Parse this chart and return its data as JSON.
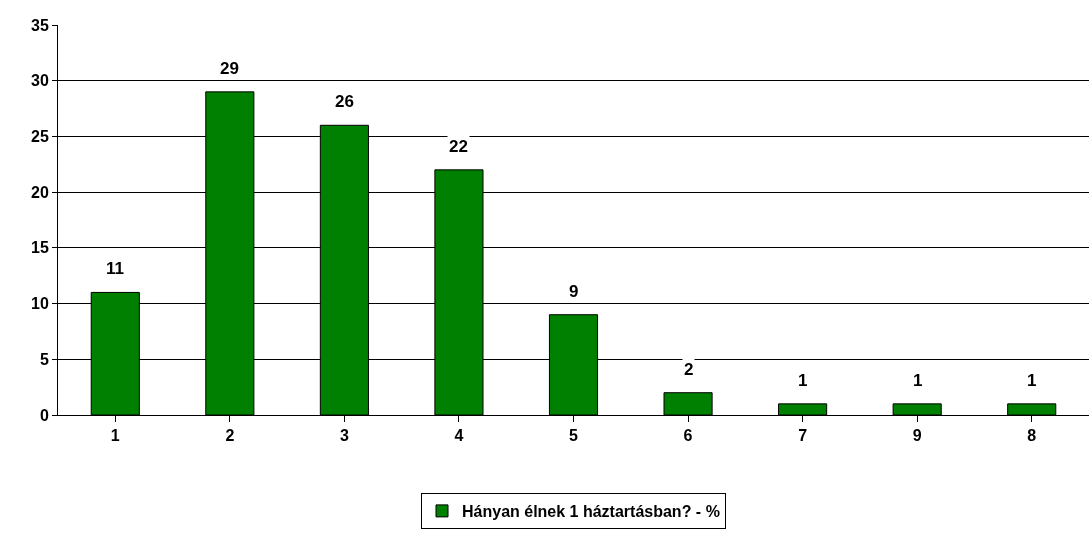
{
  "chart_data": {
    "type": "bar",
    "categories": [
      "1",
      "2",
      "3",
      "4",
      "5",
      "6",
      "7",
      "9",
      "8"
    ],
    "series": [
      {
        "name": "Hányan élnek 1 háztartásban? - %",
        "color": "#008000",
        "values": [
          11,
          29,
          26,
          22,
          9,
          2,
          1,
          1,
          1
        ]
      }
    ],
    "ylim": [
      0,
      35
    ],
    "yticks": [
      0,
      5,
      10,
      15,
      20,
      25,
      30,
      35
    ],
    "grid": "y",
    "legend": "bottom",
    "data_labels": true
  }
}
